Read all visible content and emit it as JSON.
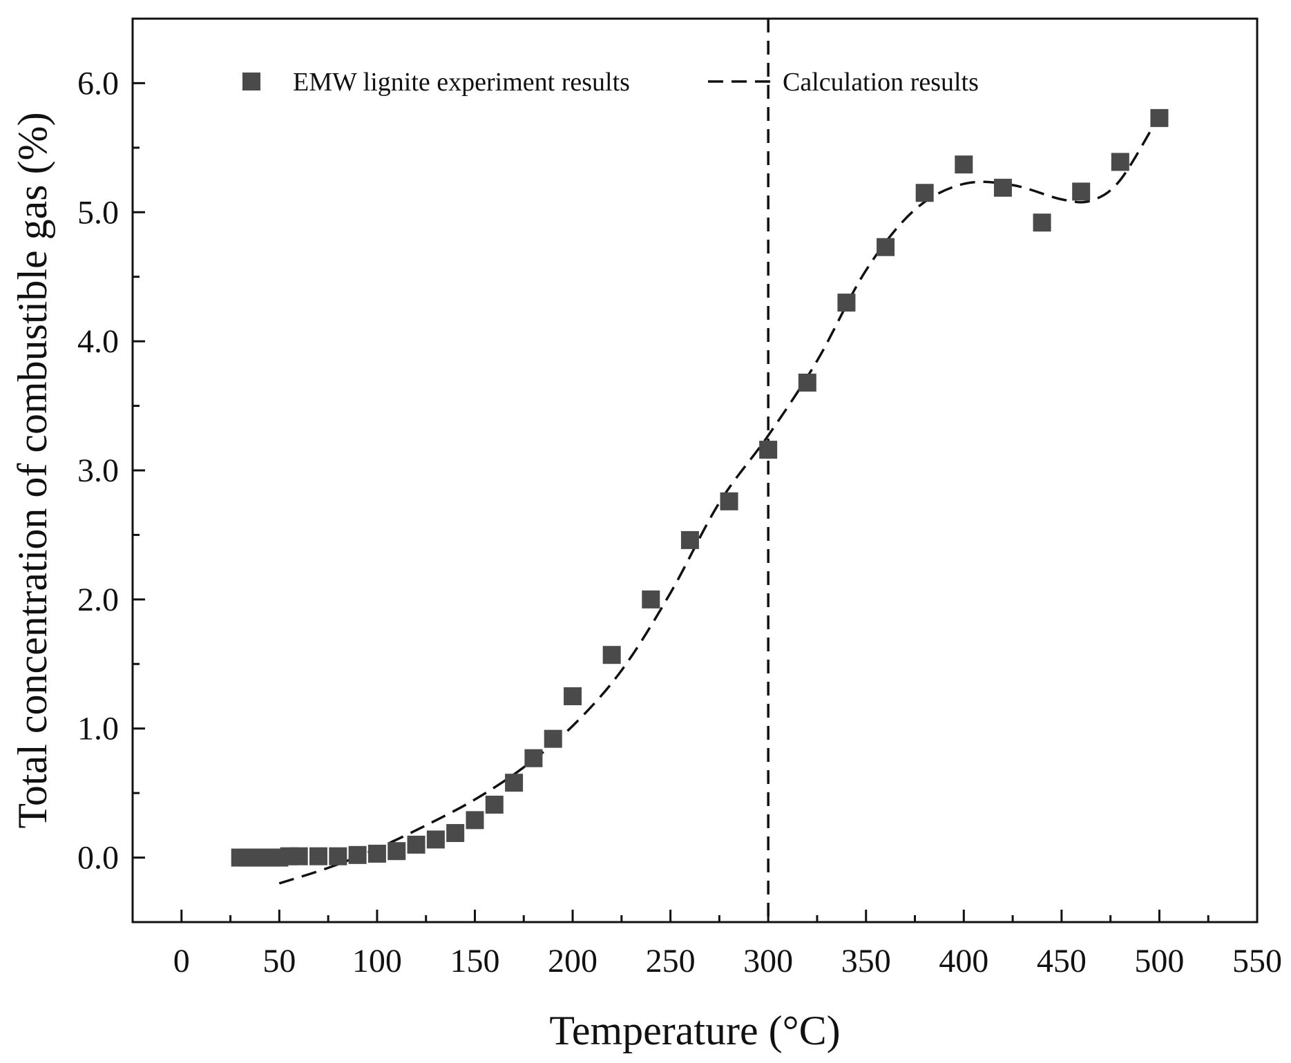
{
  "chart_data": {
    "type": "scatter",
    "title": "",
    "xlabel": "Temperature (°C)",
    "ylabel": "Total concentration of combustible gas (%)",
    "xlim": [
      -25,
      550
    ],
    "ylim": [
      -0.5,
      6.5
    ],
    "xticks": [
      0,
      50,
      100,
      150,
      200,
      250,
      300,
      350,
      400,
      450,
      500,
      550
    ],
    "xtick_labels": [
      "0",
      "50",
      "100",
      "150",
      "200",
      "250",
      "300",
      "350",
      "400",
      "450",
      "500",
      "550"
    ],
    "yticks": [
      0.0,
      1.0,
      2.0,
      3.0,
      4.0,
      5.0,
      6.0
    ],
    "ytick_labels": [
      "0.0",
      "1.0",
      "2.0",
      "3.0",
      "4.0",
      "5.0",
      "6.0"
    ],
    "grid": false,
    "legend_position": "top",
    "reference_line": {
      "x": 300,
      "style": "dashed"
    },
    "series": [
      {
        "name": "EMW lignite experiment results",
        "kind": "scatter",
        "marker": "square",
        "color": "#4a4a4a",
        "x": [
          30,
          35,
          40,
          45,
          50,
          55,
          60,
          70,
          80,
          90,
          100,
          110,
          120,
          130,
          140,
          150,
          160,
          170,
          180,
          190,
          200,
          220,
          240,
          260,
          280,
          300,
          320,
          340,
          360,
          380,
          400,
          420,
          440,
          460,
          480,
          500
        ],
        "y": [
          0.0,
          0.0,
          0.0,
          0.0,
          0.0,
          0.01,
          0.01,
          0.01,
          0.01,
          0.02,
          0.03,
          0.05,
          0.1,
          0.14,
          0.19,
          0.29,
          0.41,
          0.58,
          0.77,
          0.92,
          1.25,
          1.57,
          2.0,
          2.46,
          2.76,
          3.16,
          3.68,
          4.3,
          4.73,
          5.15,
          5.37,
          5.19,
          4.92,
          5.16,
          5.39,
          5.73
        ]
      },
      {
        "name": "Calculation results",
        "kind": "line",
        "style": "dashed",
        "color": "#111111",
        "x": [
          50,
          75,
          100,
          125,
          150,
          175,
          200,
          225,
          250,
          275,
          300,
          325,
          350,
          375,
          400,
          425,
          450,
          465,
          480,
          500
        ],
        "y": [
          -0.2,
          -0.08,
          0.07,
          0.25,
          0.45,
          0.7,
          1.02,
          1.45,
          2.05,
          2.75,
          3.27,
          3.85,
          4.55,
          5.02,
          5.22,
          5.21,
          5.1,
          5.09,
          5.25,
          5.75
        ]
      }
    ]
  }
}
